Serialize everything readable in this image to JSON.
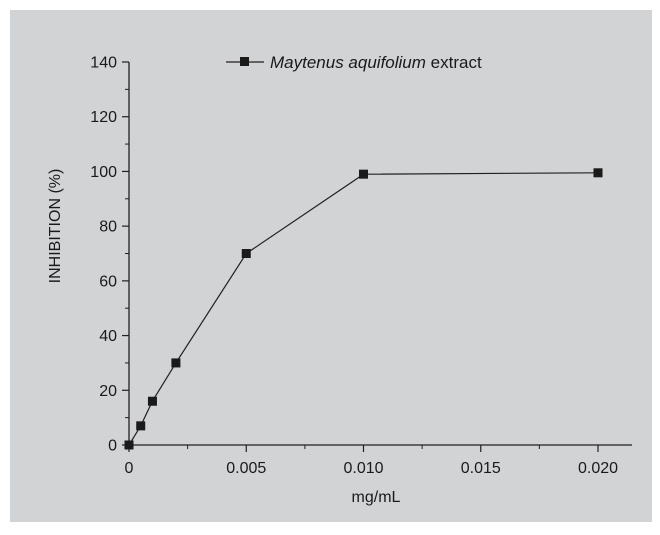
{
  "colors": {
    "panel_background": "#d1d3d4",
    "axis": "#231f20",
    "series_line": "#231f20",
    "marker": "#1a1a1a"
  },
  "chart_data": {
    "type": "line",
    "title": "",
    "xlabel": "mg/mL",
    "ylabel": "INHIBITION (%)",
    "xlim": [
      0,
      0.02
    ],
    "ylim": [
      0,
      140
    ],
    "x_ticks": [
      "0",
      "0.005",
      "0.010",
      "0.015",
      "0.020"
    ],
    "x_tick_values": [
      0,
      0.005,
      0.01,
      0.015,
      0.02
    ],
    "x_minor_tick_values": [
      0.0025,
      0.0075,
      0.0125,
      0.0175
    ],
    "y_ticks": [
      "0",
      "20",
      "40",
      "60",
      "80",
      "100",
      "120",
      "140"
    ],
    "y_tick_values": [
      0,
      20,
      40,
      60,
      80,
      100,
      120,
      140
    ],
    "y_minor_tick_values": [
      10,
      30,
      50,
      70,
      90,
      110,
      130
    ],
    "grid": false,
    "legend": {
      "position": "top",
      "entries": [
        {
          "name_italic": "Maytenus aquifolium",
          "name_suffix": " extract"
        }
      ]
    },
    "series": [
      {
        "name": "Maytenus aquifolium extract",
        "marker": "square",
        "x": [
          0,
          0.0005,
          0.001,
          0.002,
          0.005,
          0.01,
          0.02
        ],
        "y": [
          0,
          7,
          16,
          30,
          70,
          99,
          99.5
        ]
      }
    ]
  }
}
